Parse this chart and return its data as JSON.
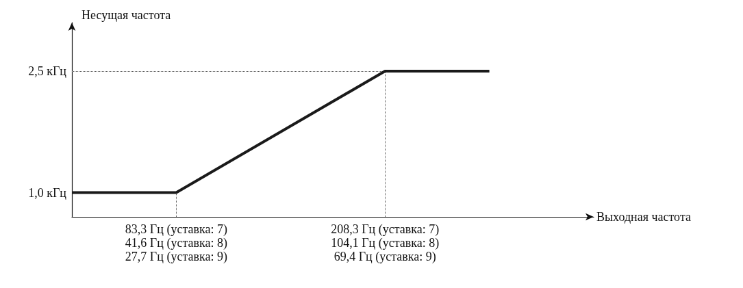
{
  "chart_data": {
    "type": "line",
    "xlabel": "Выходная частота",
    "ylabel": "Несущая частота",
    "categories": [
      null,
      "83,3 Гц (уставка: 7)\n41,6 Гц (уставка: 8)\n27,7 Гц (уставка: 9)",
      null,
      "208,3 Гц (уставка: 7)\n104,1 Гц (уставка: 8)\n69,4 Гц (уставка: 9)",
      null,
      null
    ],
    "series": [
      {
        "color": "#1a1a1a",
        "values": [
          1.0,
          1.0,
          1.75,
          2.5,
          2.5,
          null
        ]
      }
    ],
    "ylim": [
      0.7,
      3.1
    ],
    "yticks": [
      {
        "value": 1.0,
        "label": "1,0 кГц"
      },
      {
        "value": 2.5,
        "label": "2,5 кГц"
      }
    ],
    "ref_lines": [
      {
        "axis": "y",
        "value": 2.5,
        "color": "#555555",
        "line_style": "dotted"
      },
      {
        "axis": "x",
        "value": "83,3 Гц (уставка: 7)\n41,6 Гц (уставка: 8)\n27,7 Гц (уставка: 9)",
        "color": "#555555",
        "line_style": "dotted"
      },
      {
        "axis": "x",
        "value": "208,3 Гц (уставка: 7)\n104,1 Гц (уставка: 8)\n69,4 Гц (уставка: 9)",
        "color": "#555555",
        "line_style": "dotted"
      }
    ],
    "grid": false,
    "marker": "none",
    "line_style": "solid"
  }
}
